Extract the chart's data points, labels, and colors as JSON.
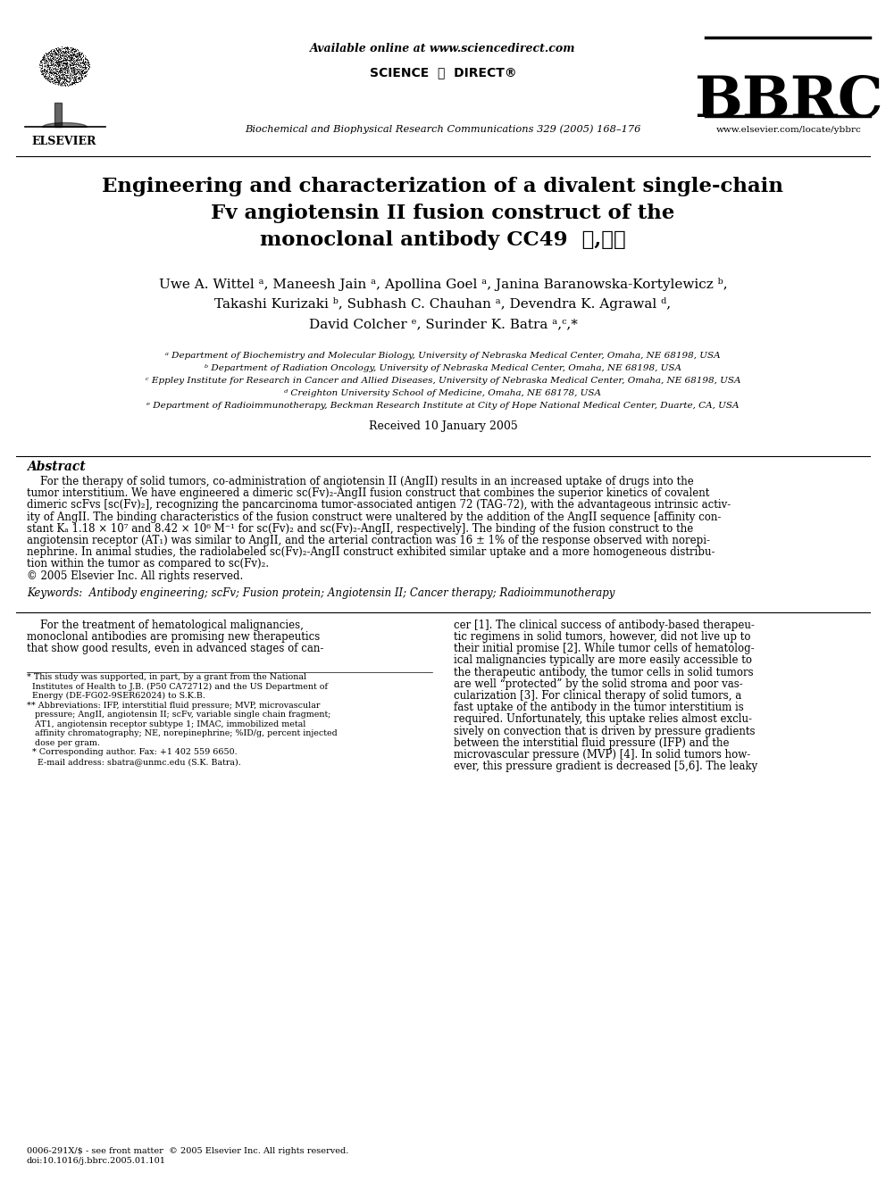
{
  "bg_color": "#ffffff",
  "available_online": "Available online at www.sciencedirect.com",
  "sciencedirect": "SCIENCE  ⓐ  DIRECT®",
  "journal_name": "Biochemical and Biophysical Research Communications 329 (2005) 168–176",
  "bbrc": "BBRC",
  "website": "www.elsevier.com/locate/ybbrc",
  "elsevier": "ELSEVIER",
  "title_lines": [
    "Engineering and characterization of a divalent single-chain",
    "Fv angiotensin II fusion construct of the",
    "monoclonal antibody CC49  ☆,☆☆"
  ],
  "author_lines": [
    "Uwe A. Wittel ᵃ, Maneesh Jain ᵃ, Apollina Goel ᵃ, Janina Baranowska-Kortylewicz ᵇ,",
    "Takashi Kurizaki ᵇ, Subhash C. Chauhan ᵃ, Devendra K. Agrawal ᵈ,",
    "David Colcher ᵉ, Surinder K. Batra ᵃ,ᶜ,*"
  ],
  "affiliations": [
    "ᵃ Department of Biochemistry and Molecular Biology, University of Nebraska Medical Center, Omaha, NE 68198, USA",
    "ᵇ Department of Radiation Oncology, University of Nebraska Medical Center, Omaha, NE 68198, USA",
    "ᶜ Eppley Institute for Research in Cancer and Allied Diseases, University of Nebraska Medical Center, Omaha, NE 68198, USA",
    "ᵈ Creighton University School of Medicine, Omaha, NE 68178, USA",
    "ᵉ Department of Radioimmunotherapy, Beckman Research Institute at City of Hope National Medical Center, Duarte, CA, USA"
  ],
  "received": "Received 10 January 2005",
  "abstract_title": "Abstract",
  "abstract_lines": [
    "    For the therapy of solid tumors, co-administration of angiotensin II (AngII) results in an increased uptake of drugs into the",
    "tumor interstitium. We have engineered a dimeric sc(Fv)₂-AngII fusion construct that combines the superior kinetics of covalent",
    "dimeric scFvs [sc(Fv)₂], recognizing the pancarcinoma tumor-associated antigen 72 (TAG-72), with the advantageous intrinsic activ-",
    "ity of AngII. The binding characteristics of the fusion construct were unaltered by the addition of the AngII sequence [affinity con-",
    "stant Kₐ 1.18 × 10⁷ and 8.42 × 10⁶ M⁻¹ for sc(Fv)₂ and sc(Fv)₂-AngII, respectively]. The binding of the fusion construct to the",
    "angiotensin receptor (AT₁) was similar to AngII, and the arterial contraction was 16 ± 1% of the response observed with norepi-",
    "nephrine. In animal studies, the radiolabeled sc(Fv)₂-AngII construct exhibited similar uptake and a more homogeneous distribu-",
    "tion within the tumor as compared to sc(Fv)₂.",
    "© 2005 Elsevier Inc. All rights reserved."
  ],
  "keywords": "Keywords:  Antibody engineering; scFv; Fusion protein; Angiotensin II; Cancer therapy; Radioimmunotherapy",
  "col1_lines": [
    "    For the treatment of hematological malignancies,",
    "monoclonal antibodies are promising new therapeutics",
    "that show good results, even in advanced stages of can-"
  ],
  "col2_lines": [
    "cer [1]. The clinical success of antibody-based therapeu-",
    "tic regimens in solid tumors, however, did not live up to",
    "their initial promise [2]. While tumor cells of hematolog-",
    "ical malignancies typically are more easily accessible to",
    "the therapeutic antibody, the tumor cells in solid tumors",
    "are well “protected” by the solid stroma and poor vas-",
    "cularization [3]. For clinical therapy of solid tumors, a",
    "fast uptake of the antibody in the tumor interstitium is",
    "required. Unfortunately, this uptake relies almost exclu-",
    "sively on convection that is driven by pressure gradients",
    "between the interstitial fluid pressure (IFP) and the",
    "microvascular pressure (MVP) [4]. In solid tumors how-",
    "ever, this pressure gradient is decreased [5,6]. The leaky"
  ],
  "footnote_lines": [
    "* This study was supported, in part, by a grant from the National",
    "  Institutes of Health to J.B. (P50 CA72712) and the US Department of",
    "  Energy (DE-FG02-9SER62024) to S.K.B.",
    "** Abbreviations: IFP, interstitial fluid pressure; MVP, microvascular",
    "   pressure; AngII, angiotensin II; scFv, variable single chain fragment;",
    "   AT1, angiotensin receptor subtype 1; IMAC, immobilized metal",
    "   affinity chromatography; NE, norepinephrine; %ID/g, percent injected",
    "   dose per gram.",
    "  * Corresponding author. Fax: +1 402 559 6650.",
    "    E-mail address: sbatra@unmc.edu (S.K. Batra)."
  ],
  "issn_lines": [
    "0006-291X/$ - see front matter  © 2005 Elsevier Inc. All rights reserved.",
    "doi:10.1016/j.bbrc.2005.01.101"
  ]
}
